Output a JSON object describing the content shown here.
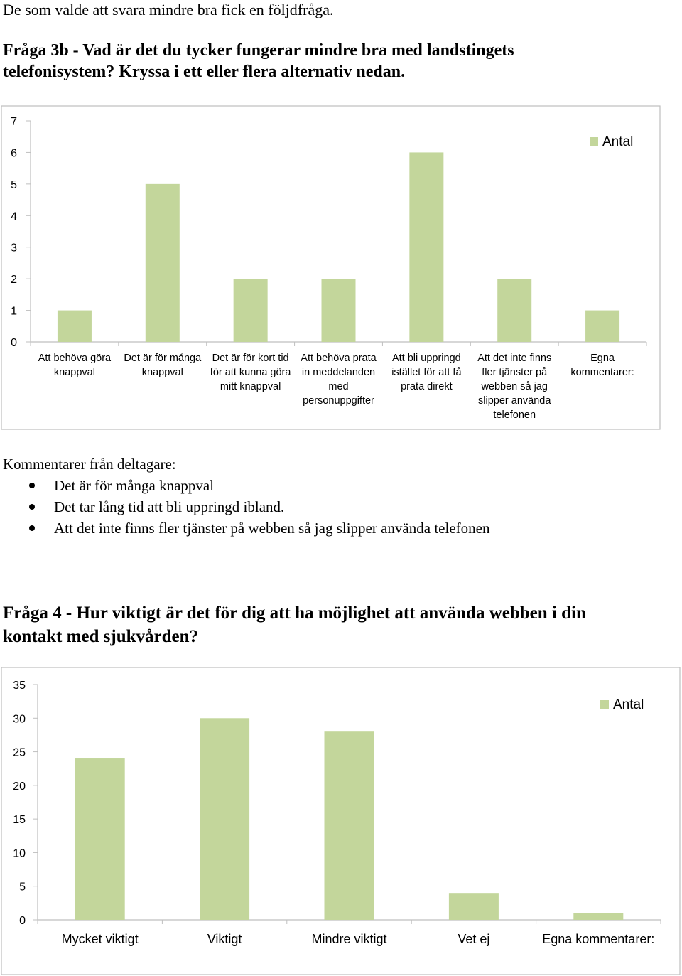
{
  "intro": "De som valde att svara mindre bra fick en följdfråga.",
  "q3b": {
    "line1": "Fråga 3b - Vad är det du tycker fungerar mindre bra med landstingets",
    "line2": "telefonisystem? Kryssa i ett eller flera alternativ nedan."
  },
  "comments": {
    "heading": "Kommentarer från deltagare:",
    "items": [
      "Det är för många knappval",
      "Det tar lång tid att bli uppringd ibland.",
      "Att det inte finns fler tjänster på webben så jag slipper använda telefonen"
    ]
  },
  "q4": {
    "line1": "Fråga 4 - Hur viktigt är det för dig att ha möjlighet att använda webben i din",
    "line2": "kontakt med sjukvården?"
  },
  "colors": {
    "bar": "#c3d69b",
    "grid": "#d9d9d9",
    "frame": "#bfbfbf"
  },
  "chart_data": [
    {
      "type": "bar",
      "categories": [
        [
          "Att behöva göra",
          "knappval"
        ],
        [
          "Det är för många",
          "knappval"
        ],
        [
          "Det är för kort tid",
          "för att kunna göra",
          "mitt knappval"
        ],
        [
          "Att behöva prata",
          "in meddelanden",
          "med",
          "personuppgifter"
        ],
        [
          "Att bli uppringd",
          "istället för att få",
          "prata direkt"
        ],
        [
          "Att det inte finns",
          "fler tjänster på",
          "webben så jag",
          "slipper använda",
          "telefonen"
        ],
        [
          "Egna",
          "kommentarer:"
        ]
      ],
      "series": [
        {
          "name": "Antal",
          "values": [
            1,
            5,
            2,
            2,
            6,
            2,
            1
          ]
        }
      ],
      "yticks": [
        "0",
        "1",
        "2",
        "3",
        "4",
        "5",
        "6",
        "7"
      ],
      "ylim": [
        0,
        7
      ],
      "grid": false,
      "legend": "top-right"
    },
    {
      "type": "bar",
      "categories": [
        [
          "Mycket viktigt"
        ],
        [
          "Viktigt"
        ],
        [
          "Mindre viktigt"
        ],
        [
          "Vet ej"
        ],
        [
          "Egna kommentarer:"
        ]
      ],
      "series": [
        {
          "name": "Antal",
          "values": [
            24,
            30,
            28,
            4,
            1
          ]
        }
      ],
      "yticks": [
        "0",
        "5",
        "10",
        "15",
        "20",
        "25",
        "30",
        "35"
      ],
      "ylim": [
        0,
        35
      ],
      "grid": false,
      "legend": "top-right"
    }
  ]
}
